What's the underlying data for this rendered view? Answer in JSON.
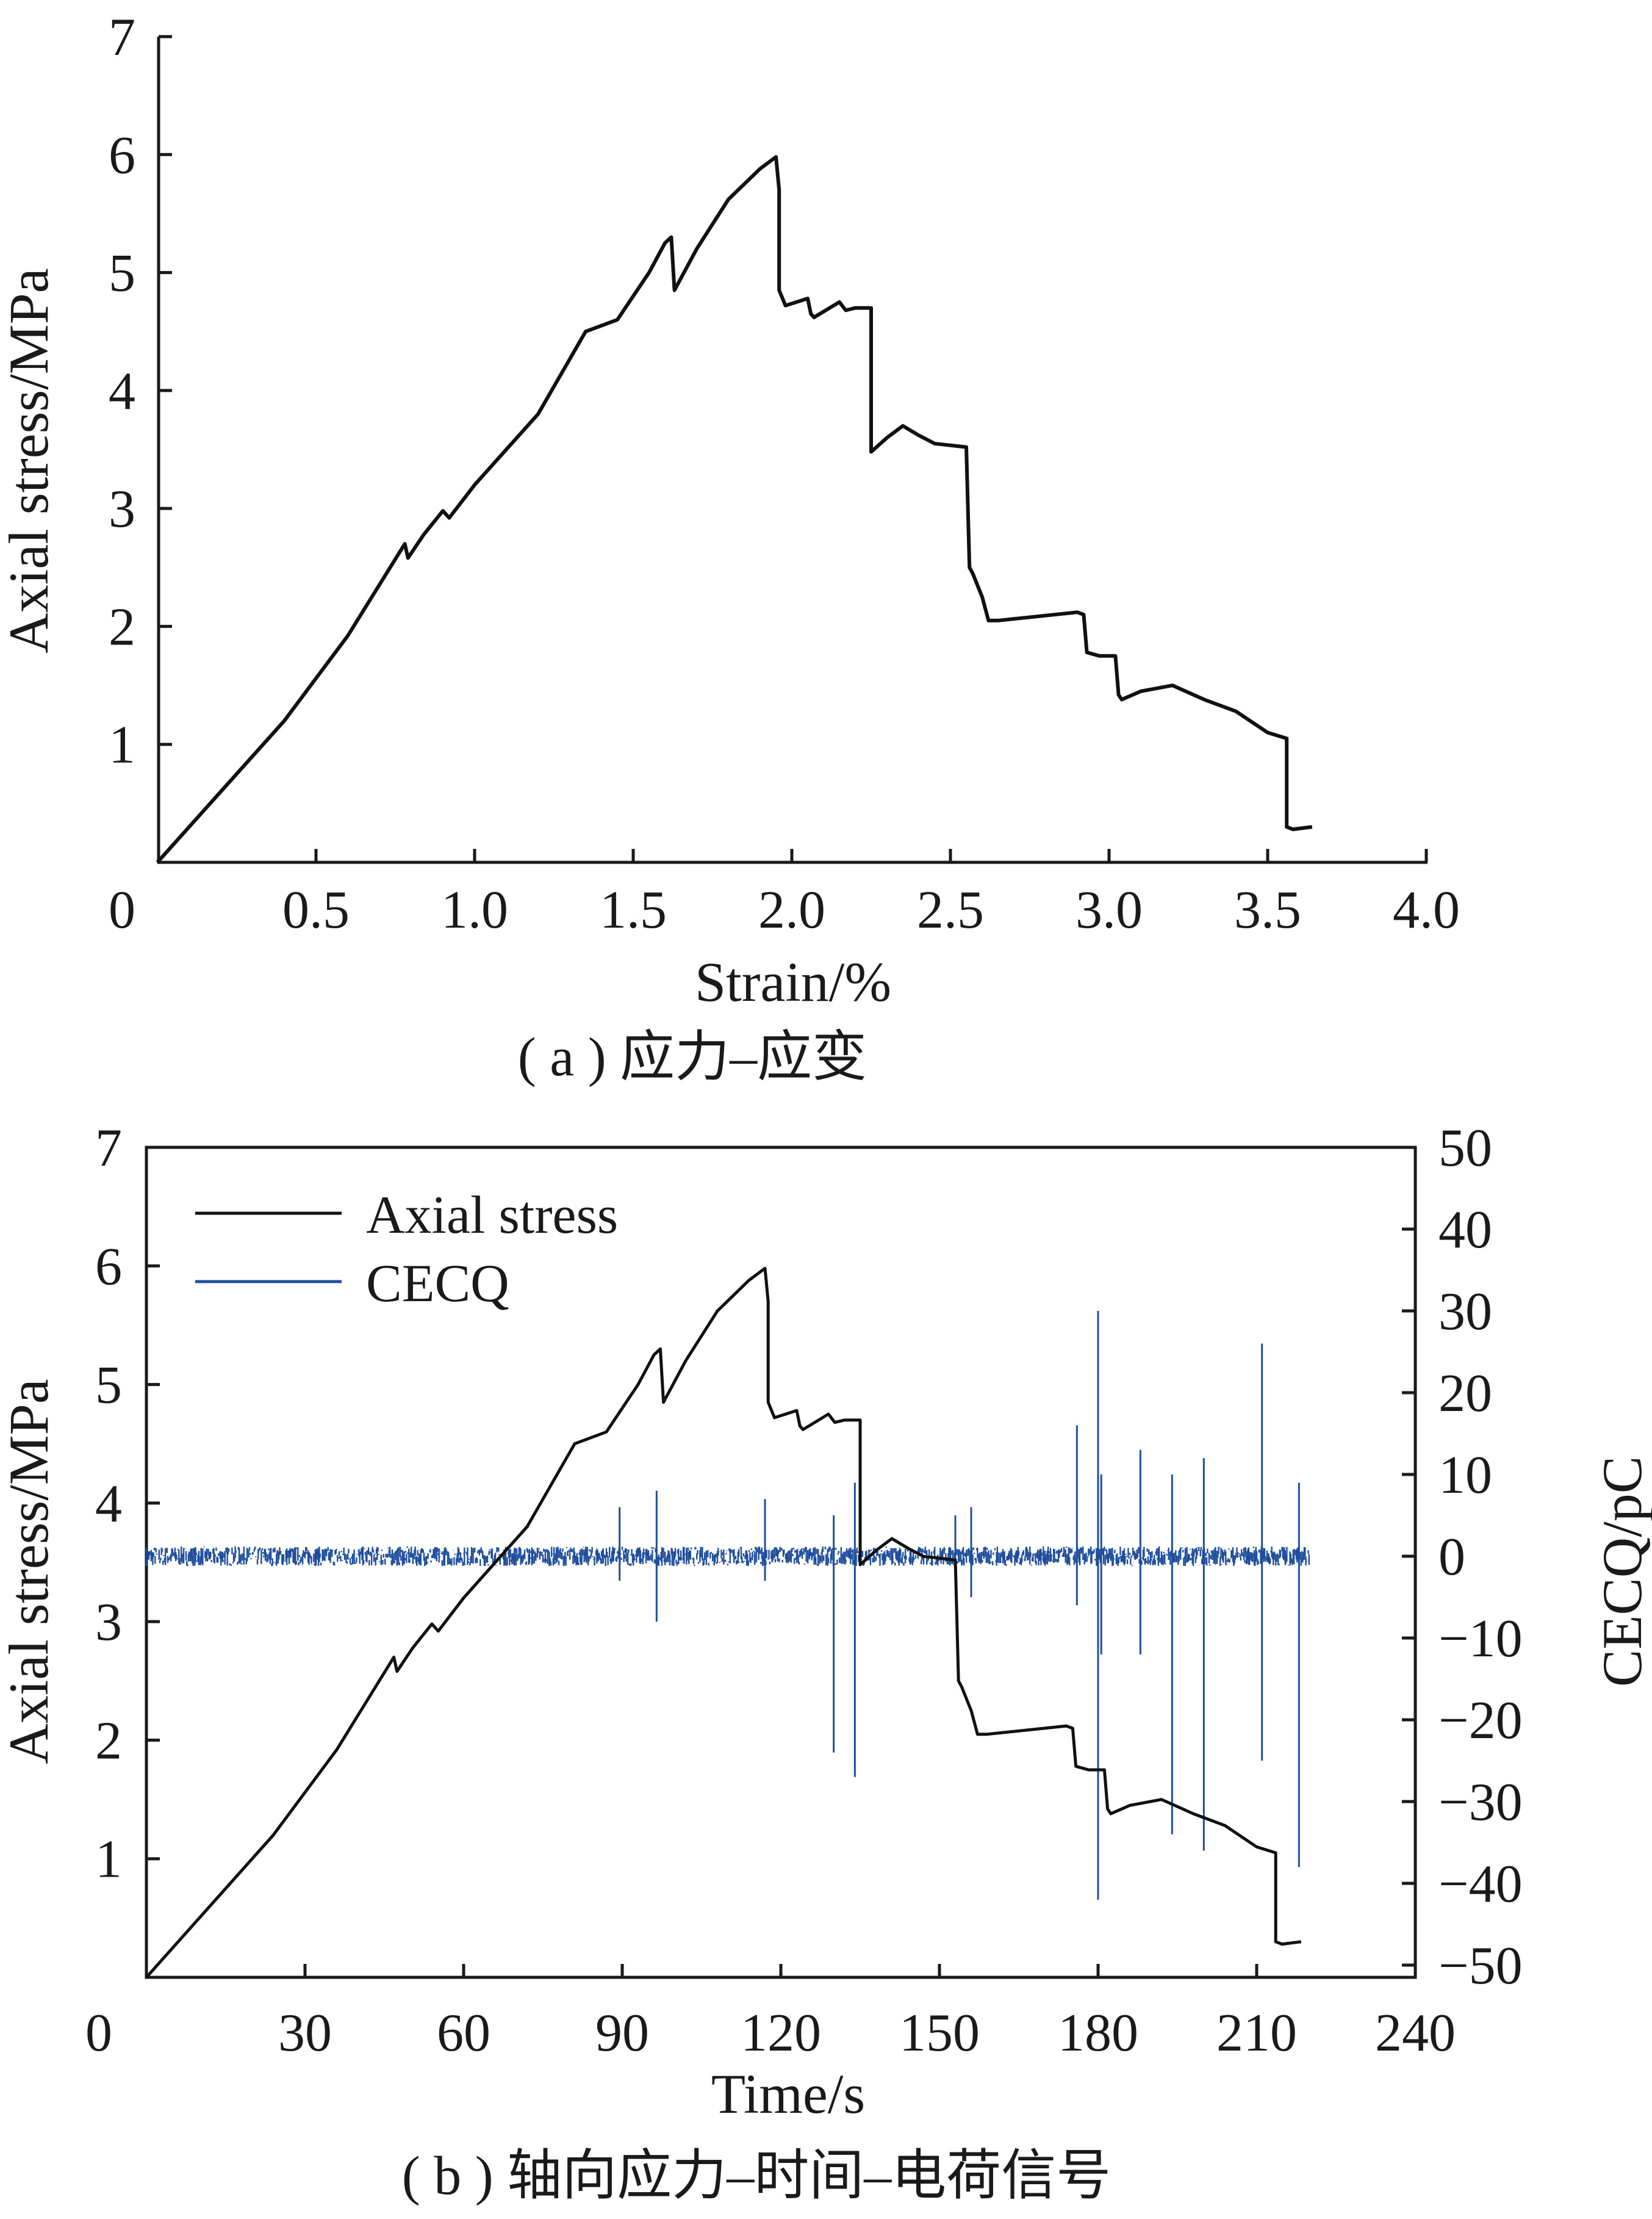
{
  "chart_data": [
    {
      "type": "line",
      "caption": "( a )  应力–应变",
      "xlabel": "Strain/%",
      "ylabel": "Axial stress/MPa",
      "xlim": [
        0,
        4.0
      ],
      "ylim": [
        0,
        7
      ],
      "x_ticks": [
        "0",
        "0.5",
        "1.0",
        "1.5",
        "2.0",
        "2.5",
        "3.0",
        "3.5",
        "4.0"
      ],
      "y_ticks": [
        "1",
        "2",
        "3",
        "4",
        "5",
        "6",
        "7"
      ],
      "series": [
        {
          "color": "#111111",
          "x": [
            0,
            0.2,
            0.4,
            0.6,
            0.78,
            0.79,
            0.84,
            0.9,
            0.92,
            1.0,
            1.2,
            1.35,
            1.45,
            1.5,
            1.55,
            1.6,
            1.62,
            1.63,
            1.64,
            1.7,
            1.8,
            1.9,
            1.95,
            1.96,
            1.96,
            1.98,
            2.05,
            2.06,
            2.07,
            2.15,
            2.17,
            2.2,
            2.25,
            2.25,
            2.3,
            2.35,
            2.4,
            2.45,
            2.55,
            2.56,
            2.57,
            2.6,
            2.62,
            2.65,
            2.9,
            2.92,
            2.93,
            2.97,
            3.02,
            3.03,
            3.04,
            3.1,
            3.2,
            3.3,
            3.4,
            3.5,
            3.56,
            3.56,
            3.58,
            3.64
          ],
          "y": [
            0,
            0.6,
            1.2,
            1.92,
            2.7,
            2.58,
            2.78,
            2.98,
            2.92,
            3.2,
            3.8,
            4.5,
            4.6,
            4.8,
            5.0,
            5.25,
            5.3,
            4.85,
            4.9,
            5.2,
            5.62,
            5.88,
            5.98,
            5.7,
            4.85,
            4.72,
            4.78,
            4.65,
            4.62,
            4.75,
            4.68,
            4.7,
            4.7,
            3.48,
            3.6,
            3.7,
            3.62,
            3.55,
            3.52,
            2.5,
            2.45,
            2.25,
            2.05,
            2.05,
            2.12,
            2.1,
            1.78,
            1.75,
            1.75,
            1.42,
            1.38,
            1.45,
            1.5,
            1.38,
            1.28,
            1.1,
            1.05,
            0.3,
            0.28,
            0.3
          ]
        }
      ]
    },
    {
      "type": "line",
      "caption": "( b )  轴向应力–时间–电荷信号",
      "xlabel": "Time/s",
      "ylabel": "Axial stress/MPa",
      "y2label": "CECQ/pC",
      "xlim": [
        0,
        240
      ],
      "ylim": [
        0,
        7
      ],
      "y2lim": [
        -50,
        50
      ],
      "x_ticks": [
        "0",
        "30",
        "60",
        "90",
        "120",
        "150",
        "180",
        "210",
        "240"
      ],
      "y_ticks": [
        "1",
        "2",
        "3",
        "4",
        "5",
        "6",
        "7"
      ],
      "y2_ticks": [
        "50",
        "40",
        "30",
        "20",
        "10",
        "0",
        "−10",
        "−20",
        "−30",
        "−40",
        "−50"
      ],
      "legend_position": "top-left",
      "series": [
        {
          "name": "Axial stress",
          "color": "#111111",
          "x": [
            0,
            12,
            24,
            36,
            46.8,
            47.4,
            50.4,
            54,
            55.2,
            60,
            72,
            81,
            87,
            90,
            93,
            96,
            97.2,
            97.8,
            98.4,
            102,
            108,
            114,
            117,
            117.6,
            117.6,
            118.8,
            123,
            123.6,
            124.2,
            129,
            130.2,
            132,
            135,
            135,
            138,
            141,
            144,
            147,
            153,
            153.6,
            154.2,
            156,
            157.2,
            159,
            174,
            175.2,
            175.8,
            178.2,
            181.2,
            181.8,
            182.4,
            186,
            192,
            198,
            204,
            210,
            213.6,
            213.6,
            214.8,
            218.4
          ],
          "y": [
            0,
            0.6,
            1.2,
            1.92,
            2.7,
            2.58,
            2.78,
            2.98,
            2.92,
            3.2,
            3.8,
            4.5,
            4.6,
            4.8,
            5.0,
            5.25,
            5.3,
            4.85,
            4.9,
            5.2,
            5.62,
            5.88,
            5.98,
            5.7,
            4.85,
            4.72,
            4.78,
            4.65,
            4.62,
            4.75,
            4.68,
            4.7,
            4.7,
            3.48,
            3.6,
            3.7,
            3.62,
            3.55,
            3.52,
            2.5,
            2.45,
            2.25,
            2.05,
            2.05,
            2.12,
            2.1,
            1.78,
            1.75,
            1.75,
            1.42,
            1.38,
            1.45,
            1.5,
            1.38,
            1.28,
            1.1,
            1.05,
            0.3,
            0.28,
            0.3
          ]
        },
        {
          "name": "CECQ",
          "color": "#1f4e9c",
          "baseline": 0,
          "noise_band": [
            -1.2,
            1.2
          ],
          "x_range": [
            0,
            220
          ],
          "spikes": [
            {
              "x": 89.5,
              "low": -3,
              "high": 6
            },
            {
              "x": 96.5,
              "low": -8,
              "high": 8
            },
            {
              "x": 117,
              "low": -3,
              "high": 7
            },
            {
              "x": 130,
              "low": -24,
              "high": 5
            },
            {
              "x": 134,
              "low": -27,
              "high": 9
            },
            {
              "x": 153,
              "low": -3,
              "high": 5
            },
            {
              "x": 156,
              "low": -5,
              "high": 6
            },
            {
              "x": 176,
              "low": -6,
              "high": 16
            },
            {
              "x": 180,
              "low": -42,
              "high": 30
            },
            {
              "x": 180.6,
              "low": -12,
              "high": 10
            },
            {
              "x": 188,
              "low": -12,
              "high": 13
            },
            {
              "x": 194,
              "low": -34,
              "high": 10
            },
            {
              "x": 200,
              "low": -36,
              "high": 12
            },
            {
              "x": 211,
              "low": -25,
              "high": 26
            },
            {
              "x": 218,
              "low": -38,
              "high": 9
            }
          ]
        }
      ]
    }
  ]
}
